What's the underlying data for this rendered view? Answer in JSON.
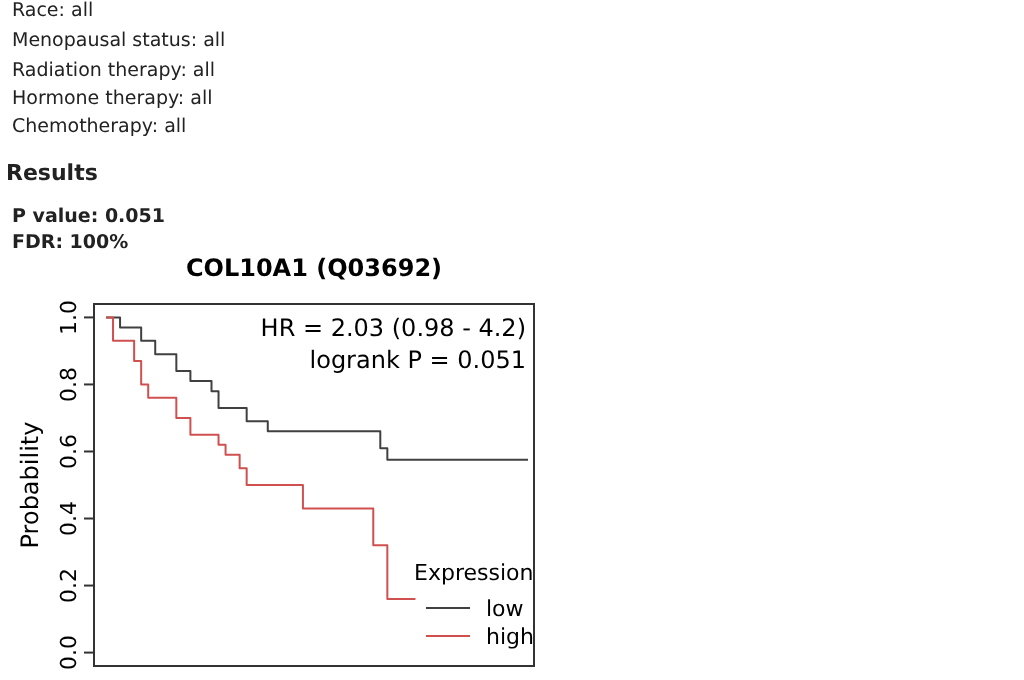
{
  "chart_data": {
    "type": "step",
    "title": "COL10A1 (Q03692)",
    "ylabel": "Probability",
    "legend_title": "Expression",
    "legend": "bottom right",
    "tick_labels": "y",
    "grid": false,
    "annotations": [
      "Race: all",
      "Menopausal status: all",
      "Radiation therapy: all",
      "Hormone therapy: all",
      "Chemotherapy: all",
      "Results",
      "P value: 0.051",
      "FDR: 100%",
      "HR = 2.03 (0.98 - 4.2)",
      "logrank P = 0.051"
    ],
    "categories": [
      null,
      null,
      null,
      null,
      null,
      null,
      null,
      null,
      null,
      null,
      null,
      null,
      null,
      null,
      null,
      null,
      null,
      null,
      null,
      null,
      null,
      null,
      null,
      null,
      null,
      null,
      null,
      null,
      null,
      null,
      null,
      null,
      null,
      null,
      null,
      null,
      null,
      null,
      null,
      null,
      null,
      null,
      null,
      null,
      null,
      null,
      null,
      null,
      null,
      null,
      null,
      null,
      null,
      null,
      null,
      null,
      null,
      null,
      null,
      null,
      null
    ],
    "ylim": [
      -0.04,
      1.04
    ],
    "yticks": [
      {
        "value": 0,
        "label": "0.0"
      },
      {
        "value": 0.2,
        "label": "0.2"
      },
      {
        "value": 0.4,
        "label": "0.4"
      },
      {
        "value": 0.6,
        "label": "0.6"
      },
      {
        "value": 0.8,
        "label": "0.8"
      },
      {
        "value": 1,
        "label": "1.0"
      }
    ],
    "series": [
      {
        "name": "low",
        "color": "#404040",
        "values": [
          1.0,
          1.0,
          0.97,
          0.97,
          0.97,
          0.93,
          0.93,
          0.89,
          0.89,
          0.89,
          0.84,
          0.84,
          0.81,
          0.81,
          0.81,
          0.78,
          0.73,
          0.73,
          0.73,
          0.73,
          0.69,
          0.69,
          0.69,
          0.66,
          0.66,
          0.66,
          0.66,
          0.66,
          0.66,
          0.66,
          0.66,
          0.66,
          0.66,
          0.66,
          0.66,
          0.66,
          0.66,
          0.66,
          0.66,
          0.61,
          0.575,
          0.575,
          0.575,
          0.575,
          0.575,
          0.575,
          0.575,
          0.575,
          0.575,
          0.575,
          0.575,
          0.575,
          0.575,
          0.575,
          0.575,
          0.575,
          0.575,
          0.575,
          0.575,
          0.575,
          0.575
        ]
      },
      {
        "name": "high",
        "color": "#d05050",
        "values": [
          1.0,
          0.93,
          0.93,
          0.93,
          0.87,
          0.8,
          0.76,
          0.76,
          0.76,
          0.76,
          0.7,
          0.7,
          0.65,
          0.65,
          0.65,
          0.65,
          0.62,
          0.59,
          0.59,
          0.55,
          0.5,
          0.5,
          0.5,
          0.5,
          0.5,
          0.5,
          0.5,
          0.5,
          0.43,
          0.43,
          0.43,
          0.43,
          0.43,
          0.43,
          0.43,
          0.43,
          0.43,
          0.43,
          0.32,
          0.32,
          0.16,
          0.16,
          0.16,
          0.16,
          0.16,
          null,
          null,
          null,
          null,
          null,
          null,
          null,
          null,
          null,
          null,
          null,
          null,
          null,
          null,
          null,
          null
        ]
      }
    ]
  }
}
